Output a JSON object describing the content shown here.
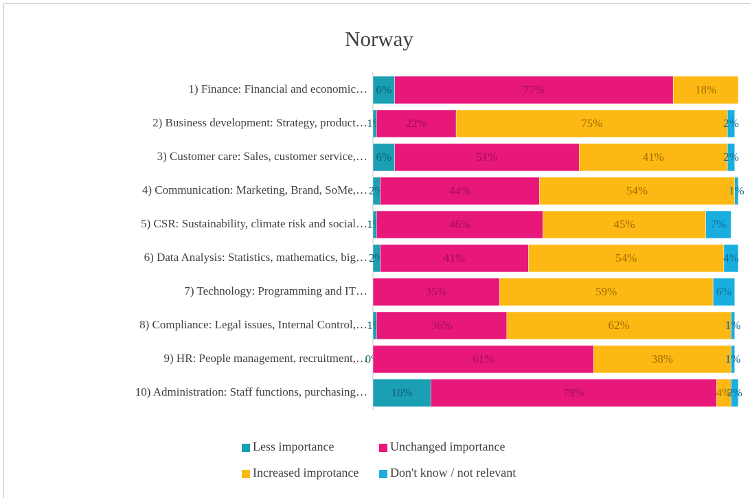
{
  "chart_data": {
    "type": "bar",
    "orientation": "horizontal",
    "stacked": true,
    "title": "Norway",
    "categories": [
      "1) Finance: Financial and economic…",
      "2) Business development: Strategy, product…",
      "3) Customer care: Sales, customer service,…",
      "4) Communication: Marketing, Brand, SoMe,…",
      "5) CSR: Sustainability, climate risk and social…",
      "6) Data Analysis: Statistics, mathematics, big…",
      "7) Technology: Programming and IT…",
      "8) Compliance: Legal issues, Internal Control,…",
      "9) HR: People management, recruitment,…",
      "10) Administration: Staff functions, purchasing…"
    ],
    "series": [
      {
        "name": "Less importance",
        "color": "#1a9fb3",
        "values": [
          6,
          1,
          6,
          2,
          1,
          2,
          null,
          1,
          0,
          16
        ],
        "value_labels": [
          "6%",
          "1%",
          "6%",
          "2%",
          "1%",
          "2%",
          null,
          "1%",
          "0%",
          "16%"
        ]
      },
      {
        "name": "Unchanged importance",
        "color": "#e8177a",
        "values": [
          77,
          22,
          51,
          44,
          46,
          41,
          35,
          36,
          61,
          79
        ],
        "value_labels": [
          "77%",
          "22%",
          "51%",
          "44%",
          "46%",
          "41%",
          "35%",
          "36%",
          "61%",
          "79%"
        ]
      },
      {
        "name": "Increased improtance",
        "color": "#fdb813",
        "values": [
          18,
          75,
          41,
          54,
          45,
          54,
          59,
          62,
          38,
          4
        ],
        "value_labels": [
          "18%",
          "75%",
          "41%",
          "54%",
          "45%",
          "54%",
          "59%",
          "62%",
          "38%",
          "4%"
        ]
      },
      {
        "name": "Don't know / not relevant",
        "color": "#1aaee0",
        "values": [
          null,
          2,
          2,
          1,
          7,
          4,
          6,
          1,
          1,
          2
        ],
        "value_labels": [
          null,
          "2%",
          "2%",
          "1%",
          "7%",
          "4%",
          "6%",
          "1%",
          "1%",
          "2%"
        ]
      }
    ],
    "xlim": [
      0,
      101
    ]
  }
}
